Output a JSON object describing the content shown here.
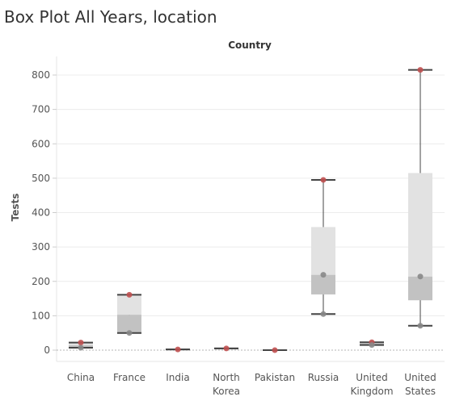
{
  "title": "Box Plot All Years, location",
  "chart_data": {
    "type": "box",
    "header": "Country",
    "ylabel": "Tests",
    "ylim": [
      -25,
      845
    ],
    "yticks": [
      0,
      100,
      200,
      300,
      400,
      500,
      600,
      700,
      800
    ],
    "grid": true,
    "categories": [
      {
        "name": [
          "China"
        ],
        "whisker_low": 7,
        "q1": 7,
        "median": 14,
        "q3": 22,
        "whisker_high": 22,
        "points": [
          {
            "v": 22,
            "c": "red"
          },
          {
            "v": 7,
            "c": "gray"
          }
        ]
      },
      {
        "name": [
          "France"
        ],
        "whisker_low": 50,
        "q1": 50,
        "median": 103,
        "q3": 161,
        "whisker_high": 161,
        "points": [
          {
            "v": 161,
            "c": "red"
          },
          {
            "v": 50,
            "c": "gray"
          }
        ]
      },
      {
        "name": [
          "India"
        ],
        "whisker_low": 2,
        "q1": 2,
        "median": 2,
        "q3": 2,
        "whisker_high": 2,
        "points": [
          {
            "v": 2,
            "c": "red"
          }
        ]
      },
      {
        "name": [
          "North",
          "Korea"
        ],
        "whisker_low": 5,
        "q1": 5,
        "median": 5,
        "q3": 5,
        "whisker_high": 5,
        "points": [
          {
            "v": 5,
            "c": "red"
          }
        ]
      },
      {
        "name": [
          "Pakistan"
        ],
        "whisker_low": 0,
        "q1": 0,
        "median": 0,
        "q3": 0,
        "whisker_high": 0,
        "points": [
          {
            "v": 0,
            "c": "red"
          }
        ]
      },
      {
        "name": [
          "Russia"
        ],
        "whisker_low": 105,
        "q1": 162,
        "median": 219,
        "q3": 358,
        "whisker_high": 495,
        "points": [
          {
            "v": 495,
            "c": "red"
          },
          {
            "v": 219,
            "c": "gray"
          },
          {
            "v": 105,
            "c": "gray"
          }
        ]
      },
      {
        "name": [
          "United",
          "Kingdom"
        ],
        "whisker_low": 15,
        "q1": 15,
        "median": 19,
        "q3": 23,
        "whisker_high": 23,
        "points": [
          {
            "v": 23,
            "c": "red"
          },
          {
            "v": 15,
            "c": "gray"
          }
        ]
      },
      {
        "name": [
          "United",
          "States"
        ],
        "whisker_low": 71,
        "q1": 145,
        "median": 214,
        "q3": 515,
        "whisker_high": 815,
        "points": [
          {
            "v": 815,
            "c": "red"
          },
          {
            "v": 214,
            "c": "gray"
          },
          {
            "v": 71,
            "c": "gray"
          }
        ]
      }
    ],
    "colors": {
      "box_upper": "#e2e2e2",
      "box_lower": "#c2c2c2",
      "whisker": "#444444",
      "point_red": "#c05050",
      "point_gray": "#888888",
      "gridline": "#ececec",
      "zero_line": "#b5b5b5"
    }
  }
}
